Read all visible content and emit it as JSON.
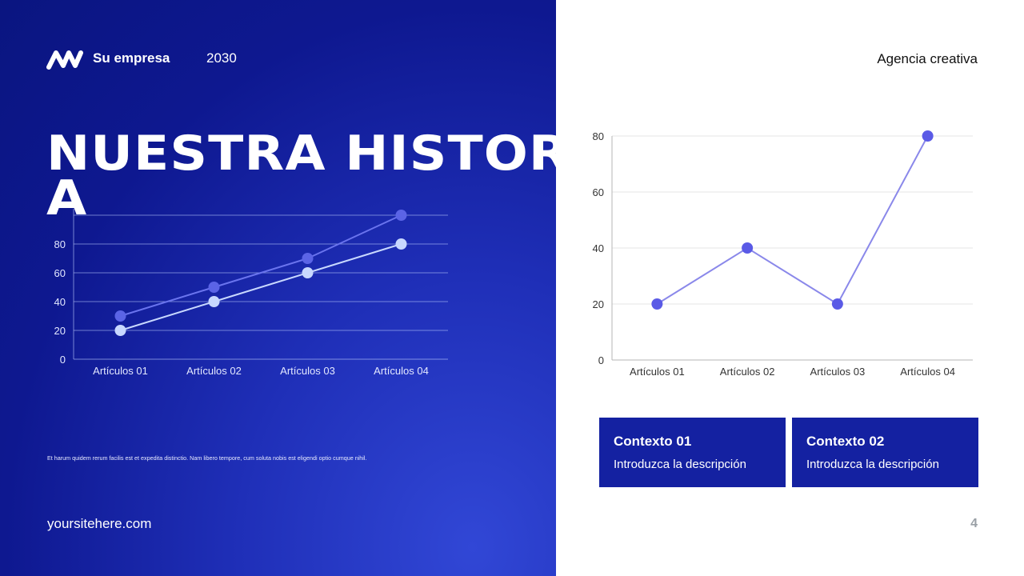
{
  "header": {
    "logo_icon": "brand-zigzag-icon",
    "company": "Su empresa",
    "year": "2030",
    "agency": "Agencia creativa"
  },
  "hero": {
    "title": "NUESTRA HISTORIA"
  },
  "footer": {
    "body_text": "Et harum quidem rerum facilis est et expedita distinctio. Nam libero tempore, cum soluta nobis est eligendi optio cumque nihil.",
    "site": "yoursitehere.com",
    "page_number": "4"
  },
  "cards": [
    {
      "title": "Contexto 01",
      "description": "Introduzca la descripción"
    },
    {
      "title": "Contexto 02",
      "description": "Introduzca la descripción"
    }
  ],
  "colors": {
    "left_bg": "#0e1890",
    "card_bg": "#1421a1",
    "right_line": "#8a88ea",
    "right_marker": "#5a5ae6",
    "left_series_a": "#5b64e6",
    "left_series_b": "#c8d8ff"
  },
  "chart_data": [
    {
      "type": "line",
      "categories": [
        "Artículos 01",
        "Artículos 02",
        "Artículos 03",
        "Artículos 04"
      ],
      "series": [
        {
          "values": [
            30,
            50,
            70,
            100
          ]
        },
        {
          "values": [
            20,
            40,
            60,
            80
          ]
        }
      ],
      "yticks": [
        0,
        20,
        40,
        60,
        80
      ],
      "ylim": [
        0,
        100
      ],
      "grid": true
    },
    {
      "type": "line",
      "categories": [
        "Artículos 01",
        "Artículos 02",
        "Artículos 03",
        "Artículos 04"
      ],
      "series": [
        {
          "values": [
            20,
            40,
            20,
            80
          ]
        }
      ],
      "yticks": [
        0,
        20,
        40,
        60,
        80
      ],
      "ylim": [
        0,
        80
      ],
      "grid": true
    }
  ]
}
